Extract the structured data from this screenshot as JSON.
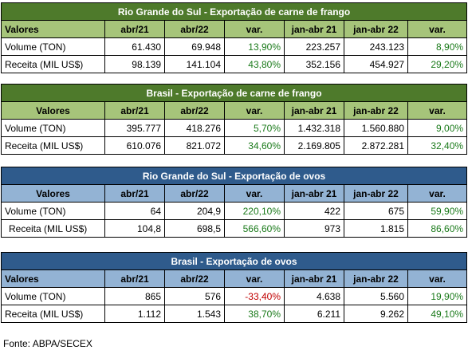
{
  "tables": [
    {
      "title": "Rio Grande do Sul - Exportação de carne de frango",
      "headers": [
        "Valores",
        "abr/21",
        "abr/22",
        "var.",
        "jan-abr 21",
        "jan-abr 22",
        "var."
      ],
      "rows": [
        [
          "Volume (TON)",
          "61.430",
          "69.948",
          "13,90%",
          "223.257",
          "243.123",
          "8,90%"
        ],
        [
          "Receita (MIL US$)",
          "98.139",
          "141.104",
          "43,80%",
          "352.156",
          "454.927",
          "29,20%"
        ]
      ]
    },
    {
      "title": "Brasil -  Exportação de carne de frango",
      "headers": [
        "Valores",
        "abr/21",
        "abr/22",
        "var.",
        "jan-abr 21",
        "jan-abr 22",
        "var."
      ],
      "rows": [
        [
          "Volume (TON)",
          "395.777",
          "418.276",
          "5,70%",
          "1.432.318",
          "1.560.880",
          "9,00%"
        ],
        [
          "Receita (MIL US$)",
          "610.076",
          "821.072",
          "34,60%",
          "2.169.805",
          "2.872.281",
          "32,40%"
        ]
      ]
    },
    {
      "title": "Rio Grande do Sul - Exportação de ovos",
      "headers": [
        "Valores",
        "abr/21",
        "abr/22",
        "var.",
        "jan-abr 21",
        "jan-abr 22",
        "var."
      ],
      "rows": [
        [
          "Volume (TON)",
          "64",
          "204,9",
          "220,10%",
          "422",
          "675",
          "59,90%"
        ],
        [
          "Receita (MIL US$)",
          "104,8",
          "698,5",
          "566,60%",
          "973",
          "1.815",
          "86,60%"
        ]
      ]
    },
    {
      "title": "Brasil -  Exportação de ovos",
      "headers": [
        "Valores",
        "abr/21",
        "abr/22",
        "var.",
        "jan-abr 21",
        "jan-abr 22",
        "var."
      ],
      "rows": [
        [
          "Volume (TON)",
          "865",
          "576",
          "-33,40%",
          "4.638",
          "5.560",
          "19,90%"
        ],
        [
          "Receita (MIL US$)",
          "1.112",
          "1.543",
          "38,70%",
          "6.211",
          "9.262",
          "49,10%"
        ]
      ]
    }
  ],
  "source": "Fonte: ABPA/SECEX",
  "colors": {
    "green_title": "#4e7a2b",
    "green_header": "#a6c47a",
    "blue_title": "#2f5b8c",
    "blue_header": "#93b3d4",
    "positive": "#1a7a1a",
    "negative": "#c00000"
  }
}
